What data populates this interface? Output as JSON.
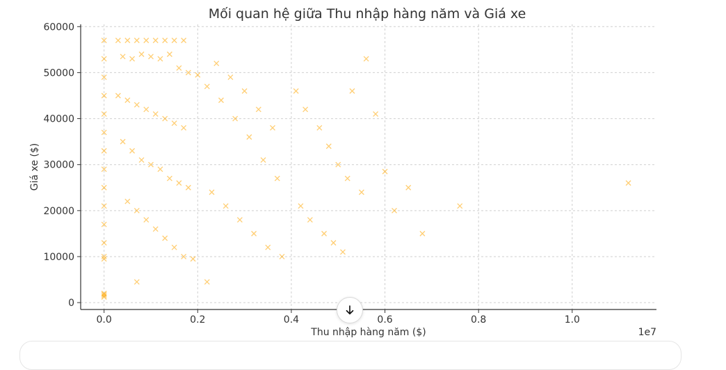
{
  "chart_data": {
    "type": "scatter",
    "title": "Mối quan hệ giữa Thu nhập hàng năm và Giá xe",
    "xlabel": "Thu nhập hàng năm ($)",
    "ylabel": "Giá xe ($)",
    "x_offset_label": "1e7",
    "xlim": [
      -0.05,
      1.18
    ],
    "ylim": [
      -1500,
      60500
    ],
    "x_ticks": [
      0.0,
      0.2,
      0.4,
      0.6,
      0.8,
      1.0
    ],
    "x_tick_labels": [
      "0.0",
      "0.2",
      "0.4",
      "0.6",
      "0.8",
      "1.0"
    ],
    "y_ticks": [
      0,
      10000,
      20000,
      30000,
      40000,
      50000,
      60000
    ],
    "y_tick_labels": [
      "0",
      "10000",
      "20000",
      "30000",
      "40000",
      "50000",
      "60000"
    ],
    "grid": true,
    "marker": "x",
    "color": "#FFA500",
    "series": [
      {
        "x": [
          0.0,
          0.0,
          0.0,
          0.0,
          0.0,
          0.0,
          0.0,
          0.0,
          0.0,
          0.0,
          0.0,
          0.0,
          0.0,
          0.0,
          0.0,
          0.0,
          0.03,
          0.05,
          0.07,
          0.09,
          0.11,
          0.13,
          0.15,
          0.17,
          0.04,
          0.06,
          0.08,
          0.1,
          0.12,
          0.14,
          0.16,
          0.18,
          0.2,
          0.03,
          0.05,
          0.07,
          0.09,
          0.11,
          0.13,
          0.15,
          0.17,
          0.04,
          0.06,
          0.08,
          0.1,
          0.12,
          0.14,
          0.16,
          0.18,
          0.05,
          0.07,
          0.09,
          0.11,
          0.13,
          0.15,
          0.17,
          0.19,
          0.22,
          0.25,
          0.28,
          0.31,
          0.34,
          0.37,
          0.23,
          0.26,
          0.29,
          0.32,
          0.35,
          0.38,
          0.24,
          0.27,
          0.3,
          0.33,
          0.36,
          0.41,
          0.43,
          0.46,
          0.48,
          0.5,
          0.52,
          0.55,
          0.42,
          0.44,
          0.47,
          0.49,
          0.51,
          0.53,
          0.56,
          0.58,
          0.6,
          0.62,
          0.65,
          0.68,
          0.76,
          1.12,
          0.07,
          0.22,
          0.0,
          0.0
        ],
        "y": [
          57000,
          53000,
          49000,
          45000,
          41000,
          37000,
          33000,
          29000,
          25000,
          21000,
          17000,
          13000,
          10000,
          9500,
          2000,
          1500,
          57000,
          57000,
          57000,
          57000,
          57000,
          57000,
          57000,
          57000,
          53500,
          53000,
          54000,
          53500,
          53000,
          54000,
          51000,
          50000,
          49500,
          45000,
          44000,
          43000,
          42000,
          41000,
          40000,
          39000,
          38000,
          35000,
          33000,
          31000,
          30000,
          29000,
          27000,
          26000,
          25000,
          22000,
          20000,
          18000,
          16000,
          14000,
          12000,
          10000,
          9500,
          47000,
          44000,
          40000,
          36000,
          31000,
          27000,
          24000,
          21000,
          18000,
          15000,
          12000,
          10000,
          52000,
          49000,
          46000,
          42000,
          38000,
          46000,
          42000,
          38000,
          34000,
          30000,
          27000,
          24000,
          21000,
          18000,
          15000,
          13000,
          11000,
          46000,
          53000,
          41000,
          28500,
          20000,
          25000,
          15000,
          21000,
          26000,
          4500,
          4500,
          1800,
          1200
        ]
      }
    ]
  }
}
